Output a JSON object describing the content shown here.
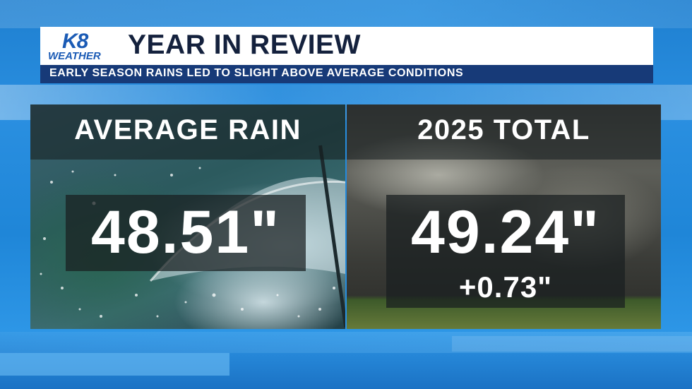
{
  "logo": {
    "k8": "K8",
    "weather": "WEATHER"
  },
  "header": {
    "title": "YEAR IN REVIEW",
    "subtitle": "EARLY SEASON RAINS LED TO SLIGHT ABOVE AVERAGE CONDITIONS"
  },
  "panels": [
    {
      "heading": "AVERAGE RAIN",
      "value": "48.51\""
    },
    {
      "heading": "2025 TOTAL",
      "value": "49.24\"",
      "difference": "+0.73\""
    }
  ],
  "colors": {
    "brand_blue": "#1b5bb5",
    "title_text": "#14213d",
    "subtitle_bar": "#173a78",
    "background_blue": "#1f86d8"
  }
}
